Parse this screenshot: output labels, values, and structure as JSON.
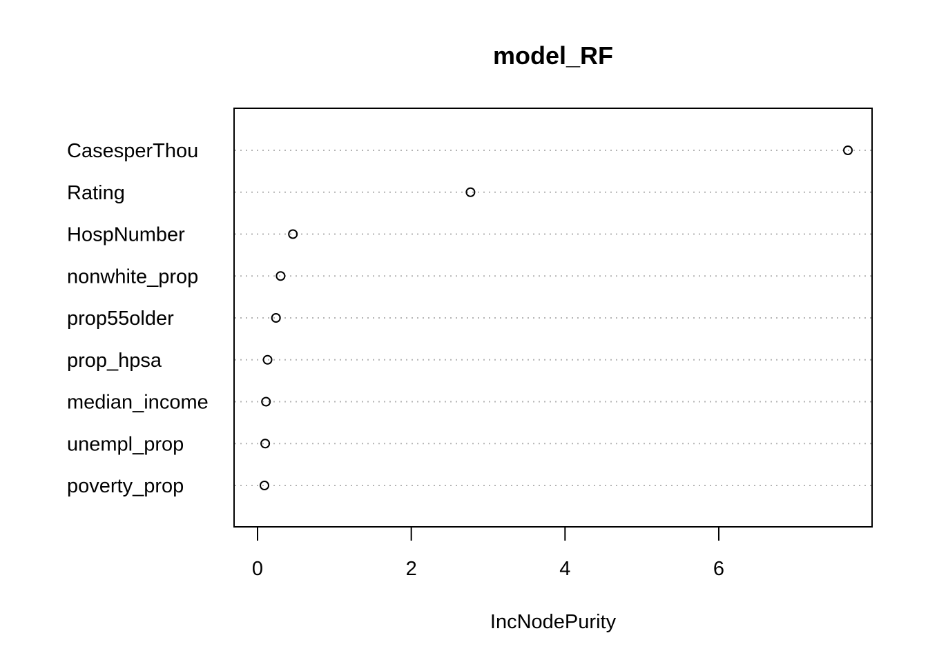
{
  "chart_data": {
    "type": "scatter",
    "title": "model_RF",
    "xlabel": "IncNodePurity",
    "ylabel": "",
    "xlim": [
      -0.15,
      7.8
    ],
    "x_ticks": [
      0,
      2,
      4,
      6
    ],
    "x_tick_labels": [
      "0",
      "2",
      "4",
      "6"
    ],
    "grid": "dotted horizontal guide lines per variable",
    "legend": "none",
    "categories": [
      "CasesperThou",
      "Rating",
      "HospNumber",
      "nonwhite_prop",
      "prop55older",
      "prop_hpsa",
      "median_income",
      "unempl_prop",
      "poverty_prop"
    ],
    "values": [
      7.68,
      2.77,
      0.46,
      0.3,
      0.24,
      0.13,
      0.11,
      0.1,
      0.09
    ]
  }
}
